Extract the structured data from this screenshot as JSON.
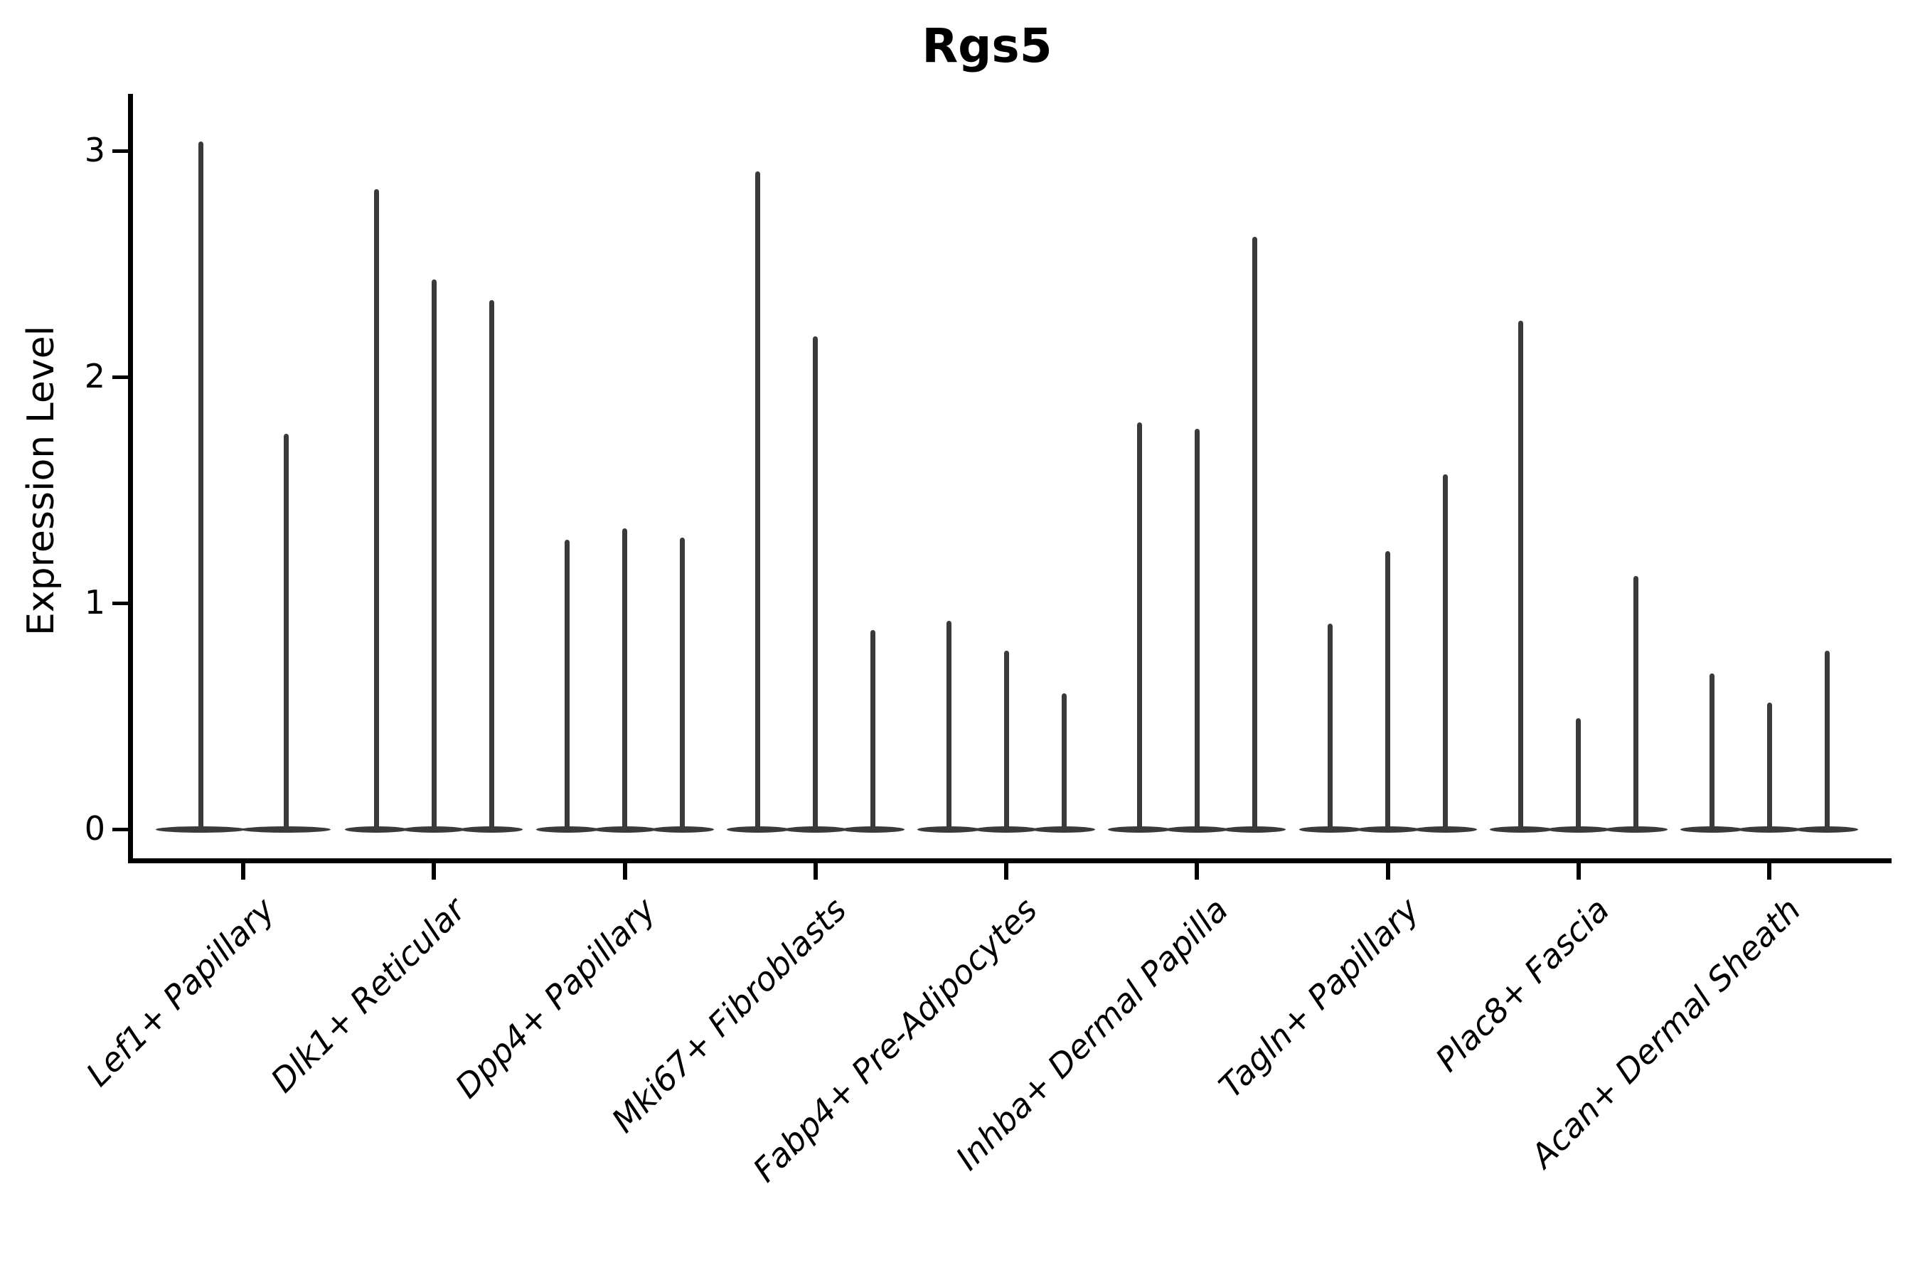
{
  "title": "Rgs5",
  "y_axis": {
    "label": "Expression Level",
    "ticks": [
      3,
      2,
      1,
      0
    ]
  },
  "x_axis": {
    "categories": [
      "Lef1+ Papillary",
      "Dlk1+ Reticular",
      "Dpp4+ Papillary",
      "Mki67+ Fibroblasts",
      "Fabp4+ Pre-Adipocytes",
      "Inhba+ Dermal Papilla",
      "Tagln+ Papillary",
      "Plac8+ Fascia",
      "Acan+ Dermal Sheath"
    ]
  },
  "chart_data": {
    "type": "violin",
    "title": "Rgs5",
    "xlabel": "",
    "ylabel": "Expression Level",
    "ylim": [
      -0.1,
      3.2
    ],
    "yticks": [
      0,
      1,
      2,
      3
    ],
    "grid": false,
    "legend_position": "none",
    "categories": [
      "Lef1+ Papillary",
      "Dlk1+ Reticular",
      "Dpp4+ Papillary",
      "Mki67+ Fibroblasts",
      "Fabp4+ Pre-Adipocytes",
      "Inhba+ Dermal Papilla",
      "Tagln+ Papillary",
      "Plac8+ Fascia",
      "Acan+ Dermal Sheath"
    ],
    "series": [
      {
        "category": "Lef1+ Papillary",
        "violin_max_values": [
          3.04,
          1.75
        ]
      },
      {
        "category": "Dlk1+ Reticular",
        "violin_max_values": [
          2.83,
          2.43,
          2.34
        ]
      },
      {
        "category": "Dpp4+ Papillary",
        "violin_max_values": [
          1.28,
          1.33,
          1.29
        ]
      },
      {
        "category": "Mki67+ Fibroblasts",
        "violin_max_values": [
          2.91,
          2.18,
          0.88
        ]
      },
      {
        "category": "Fabp4+ Pre-Adipocytes",
        "violin_max_values": [
          0.92,
          0.79,
          0.6
        ]
      },
      {
        "category": "Inhba+ Dermal Papilla",
        "violin_max_values": [
          1.8,
          1.77,
          2.62
        ]
      },
      {
        "category": "Tagln+ Papillary",
        "violin_max_values": [
          0.91,
          1.23,
          1.57
        ]
      },
      {
        "category": "Plac8+ Fascia",
        "violin_max_values": [
          2.25,
          0.49,
          1.12
        ]
      },
      {
        "category": "Acan+ Dermal Sheath",
        "violin_max_values": [
          0.69,
          0.56,
          0.79
        ]
      }
    ],
    "notes": "Each violin is collapsed to a thin vertical spike (bulk of distribution at 0) with a wide flat sliver at expression 0; spike top marks the maximum expression."
  },
  "style": {
    "violin_color": "#3a3a3a",
    "axis_color": "#000000",
    "text_color": "#000000",
    "background": "#ffffff"
  }
}
